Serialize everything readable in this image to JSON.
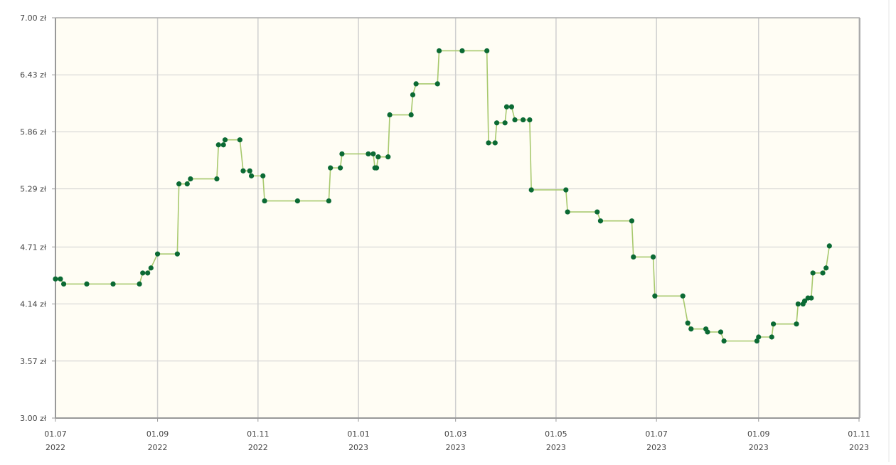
{
  "chart_data": {
    "type": "line",
    "xlim": [
      "2022-07-01",
      "2023-11-01"
    ],
    "xticks": [
      {
        "value": "2022-07-01",
        "label": [
          "01.07",
          "2022"
        ]
      },
      {
        "value": "2022-09-01",
        "label": [
          "01.09",
          "2022"
        ]
      },
      {
        "value": "2022-11-01",
        "label": [
          "01.11",
          "2022"
        ]
      },
      {
        "value": "2023-01-01",
        "label": [
          "01.01",
          "2023"
        ]
      },
      {
        "value": "2023-03-01",
        "label": [
          "01.03",
          "2023"
        ]
      },
      {
        "value": "2023-05-01",
        "label": [
          "01.05",
          "2023"
        ]
      },
      {
        "value": "2023-07-01",
        "label": [
          "01.07",
          "2023"
        ]
      },
      {
        "value": "2023-09-01",
        "label": [
          "01.09",
          "2023"
        ]
      },
      {
        "value": "2023-11-01",
        "label": [
          "01.11",
          "2023"
        ]
      }
    ],
    "ylim": [
      3,
      7
    ],
    "yticks": [
      {
        "value": 3,
        "label": "3.00 zł"
      },
      {
        "value": 3.57,
        "label": "3.57 zł"
      },
      {
        "value": 4.14,
        "label": "4.14 zł"
      },
      {
        "value": 4.71,
        "label": "4.71 zł"
      },
      {
        "value": 5.29,
        "label": "5.29 zł"
      },
      {
        "value": 5.86,
        "label": "5.86 zł"
      },
      {
        "value": 6.43,
        "label": "6.43 zł"
      },
      {
        "value": 7,
        "label": "7.00 zł"
      }
    ],
    "grid": true,
    "color": "#a8c96e",
    "marker_color": "#0b6a34",
    "x": [
      "2022-07-01",
      "2022-07-04",
      "2022-07-06",
      "2022-07-20",
      "2022-08-05",
      "2022-08-21",
      "2022-08-23",
      "2022-08-26",
      "2022-08-28",
      "2022-09-01",
      "2022-09-13",
      "2022-09-14",
      "2022-09-19",
      "2022-09-21",
      "2022-10-07",
      "2022-10-08",
      "2022-10-11",
      "2022-10-12",
      "2022-10-21",
      "2022-10-23",
      "2022-10-27",
      "2022-10-28",
      "2022-11-04",
      "2022-11-05",
      "2022-11-25",
      "2022-12-14",
      "2022-12-15",
      "2022-12-21",
      "2022-12-22",
      "2023-01-07",
      "2023-01-10",
      "2023-01-11",
      "2023-01-12",
      "2023-01-13",
      "2023-01-19",
      "2023-01-20",
      "2023-02-02",
      "2023-02-03",
      "2023-02-05",
      "2023-02-18",
      "2023-02-19",
      "2023-03-05",
      "2023-03-20",
      "2023-03-21",
      "2023-03-25",
      "2023-03-26",
      "2023-03-31",
      "2023-04-01",
      "2023-04-04",
      "2023-04-06",
      "2023-04-11",
      "2023-04-15",
      "2023-04-16",
      "2023-05-07",
      "2023-05-08",
      "2023-05-26",
      "2023-05-28",
      "2023-06-16",
      "2023-06-17",
      "2023-06-29",
      "2023-06-30",
      "2023-07-17",
      "2023-07-20",
      "2023-07-22",
      "2023-07-31",
      "2023-08-01",
      "2023-08-09",
      "2023-08-11",
      "2023-08-31",
      "2023-09-01",
      "2023-09-09",
      "2023-09-10",
      "2023-09-24",
      "2023-09-25",
      "2023-09-28",
      "2023-09-29",
      "2023-10-01",
      "2023-10-03",
      "2023-10-04",
      "2023-10-10",
      "2023-10-12",
      "2023-10-14"
    ],
    "values": [
      4.39,
      4.39,
      4.34,
      4.34,
      4.34,
      4.34,
      4.45,
      4.45,
      4.5,
      4.64,
      4.64,
      5.34,
      5.34,
      5.39,
      5.39,
      5.73,
      5.73,
      5.78,
      5.78,
      5.47,
      5.47,
      5.42,
      5.42,
      5.17,
      5.17,
      5.17,
      5.5,
      5.5,
      5.64,
      5.64,
      5.64,
      5.5,
      5.5,
      5.61,
      5.61,
      6.03,
      6.03,
      6.23,
      6.34,
      6.34,
      6.67,
      6.67,
      6.67,
      5.75,
      5.75,
      5.95,
      5.95,
      6.11,
      6.11,
      5.98,
      5.98,
      5.98,
      5.28,
      5.28,
      5.06,
      5.06,
      4.97,
      4.97,
      4.61,
      4.61,
      4.22,
      4.22,
      3.95,
      3.89,
      3.89,
      3.86,
      3.86,
      3.77,
      3.77,
      3.81,
      3.81,
      3.94,
      3.94,
      4.14,
      4.14,
      4.17,
      4.2,
      4.2,
      4.45,
      4.45,
      4.5,
      4.72
    ]
  }
}
